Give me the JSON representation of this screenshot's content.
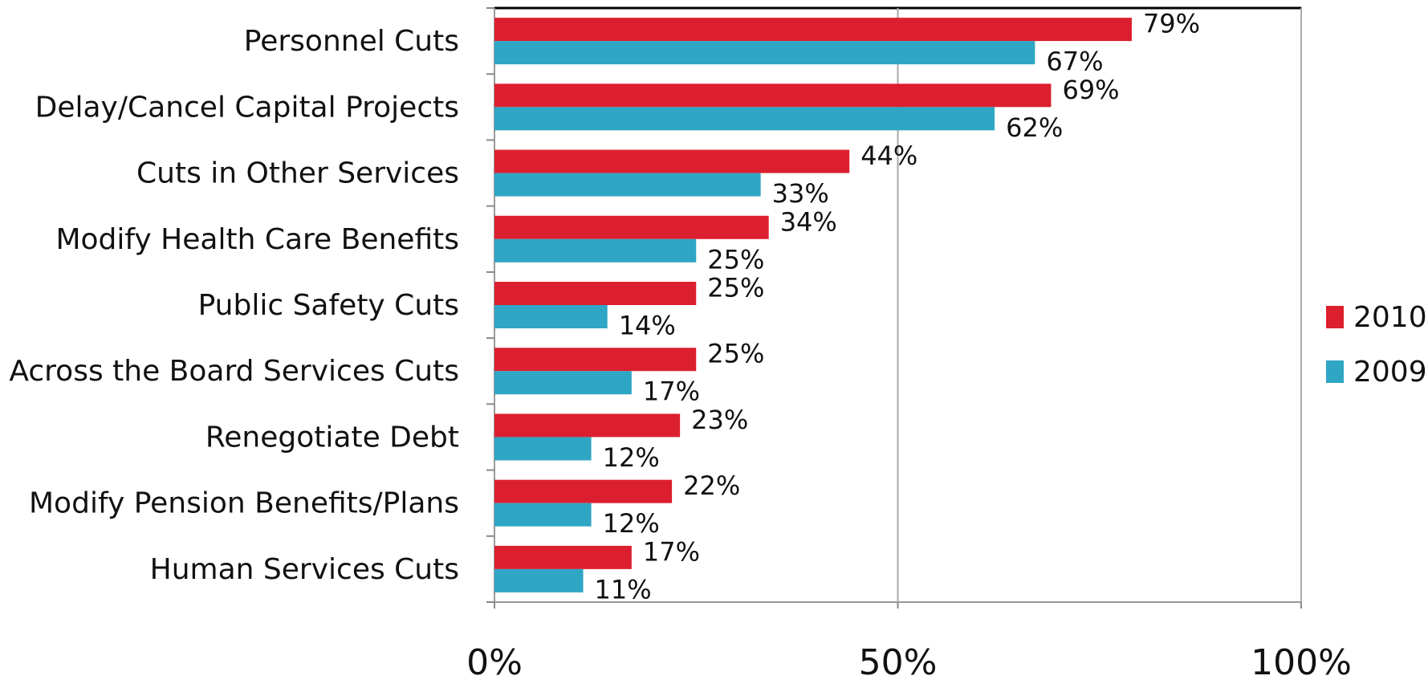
{
  "chart_data": {
    "type": "bar",
    "orientation": "horizontal",
    "categories": [
      "Personnel Cuts",
      "Delay/Cancel Capital Projects",
      "Cuts in Other Services",
      "Modify Health Care Benefits",
      "Public Safety Cuts",
      "Across the Board Services Cuts",
      "Renegotiate Debt",
      "Modify Pension Benefits/Plans",
      "Human Services Cuts"
    ],
    "series": [
      {
        "name": "2010",
        "color": "#dc1f2e",
        "values": [
          79,
          69,
          44,
          34,
          25,
          25,
          23,
          22,
          17
        ],
        "labels": [
          "79%",
          "69%",
          "44%",
          "34%",
          "25%",
          "25%",
          "23%",
          "22%",
          "17%"
        ]
      },
      {
        "name": "2009",
        "color": "#2ea6c4",
        "values": [
          67,
          62,
          33,
          25,
          14,
          17,
          12,
          12,
          11
        ],
        "labels": [
          "67%",
          "62%",
          "33%",
          "25%",
          "14%",
          "17%",
          "12%",
          "12%",
          "11%"
        ]
      }
    ],
    "xlim": [
      0,
      100
    ],
    "x_ticks": [
      0,
      50,
      100
    ],
    "x_tick_labels": [
      "0%",
      "50%",
      "100%"
    ],
    "grid": true,
    "legend_position": "right"
  }
}
